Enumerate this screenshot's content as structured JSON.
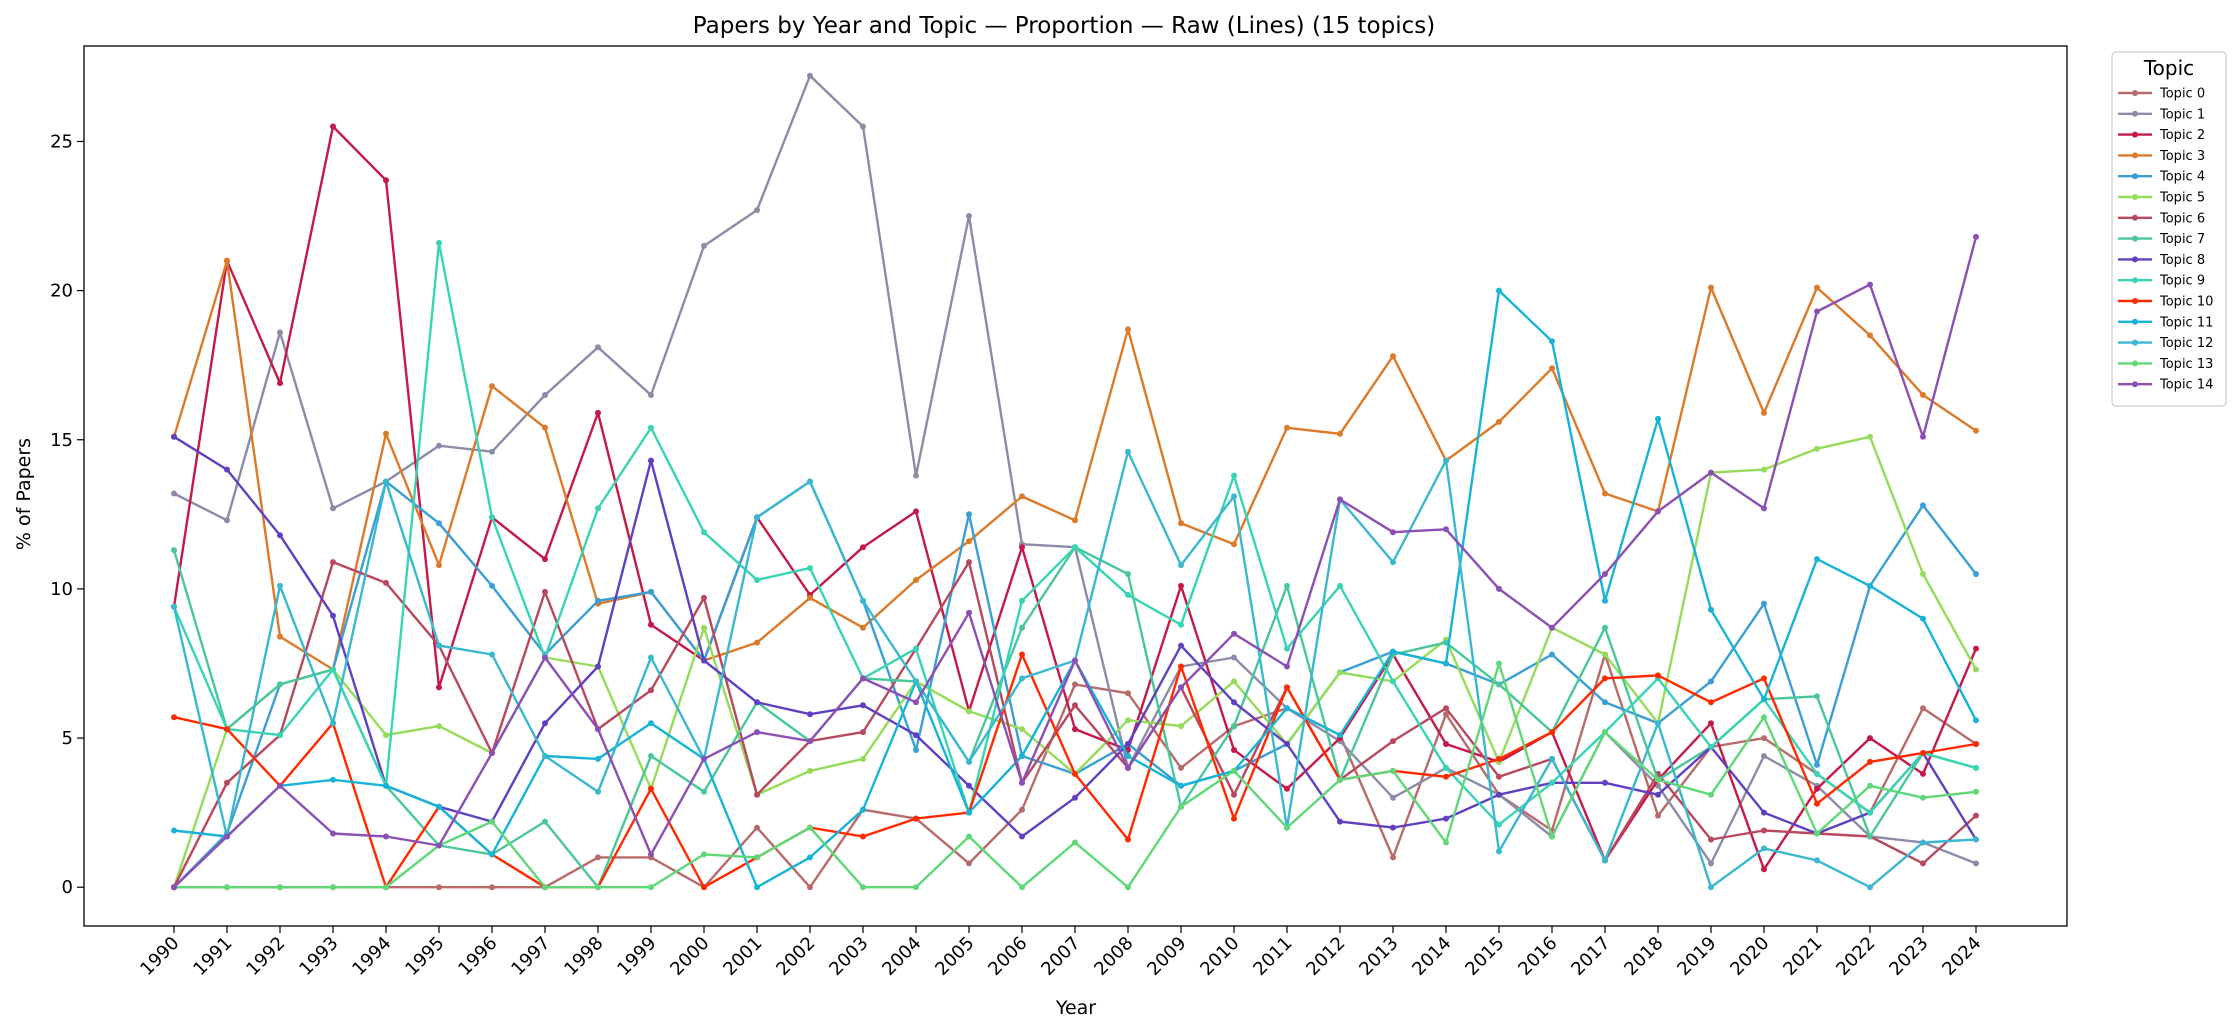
{
  "chart_data": {
    "type": "line",
    "title": "Papers by Year and Topic — Proportion — Raw (Lines) (15 topics)",
    "xlabel": "Year",
    "ylabel": "% of Papers",
    "ylim": [
      -1.3,
      28.2
    ],
    "yticks": [
      0,
      5,
      10,
      15,
      20,
      25
    ],
    "grid": false,
    "legend_title": "Topic",
    "legend_position": "outside-top-right",
    "x": [
      "1990",
      "1991",
      "1992",
      "1993",
      "1994",
      "1995",
      "1996",
      "1997",
      "1998",
      "1999",
      "2000",
      "2001",
      "2002",
      "2003",
      "2004",
      "2005",
      "2006",
      "2007",
      "2008",
      "2009",
      "2010",
      "2011",
      "2012",
      "2013",
      "2014",
      "2015",
      "2016",
      "2017",
      "2018",
      "2019",
      "2020",
      "2021",
      "2022",
      "2023",
      "2024"
    ],
    "series": [
      {
        "name": "Topic 0",
        "color": "#b86b6b",
        "values": [
          0,
          0,
          0,
          0,
          0,
          0,
          0,
          0,
          1.0,
          1.0,
          0,
          2.0,
          0,
          2.6,
          2.3,
          0.8,
          2.6,
          6.8,
          6.5,
          4.0,
          5.4,
          6.0,
          5.1,
          1.0,
          5.8,
          3.1,
          1.9,
          7.8,
          2.4,
          4.7,
          5.0,
          3.8,
          2.5,
          6.0,
          4.8
        ]
      },
      {
        "name": "Topic 1",
        "color": "#8c8ca8",
        "values": [
          13.2,
          12.3,
          18.6,
          12.7,
          13.6,
          14.8,
          14.6,
          16.5,
          18.1,
          16.5,
          21.5,
          22.7,
          27.2,
          25.5,
          13.8,
          22.5,
          11.5,
          11.4,
          4.0,
          7.4,
          7.7,
          6.0,
          4.9,
          3.0,
          4.0,
          3.1,
          1.7,
          5.2,
          3.4,
          0.8,
          4.4,
          3.4,
          1.7,
          1.5,
          0.8
        ]
      },
      {
        "name": "Topic 2",
        "color": "#c41a4a",
        "values": [
          9.4,
          21.0,
          16.9,
          25.5,
          23.7,
          6.7,
          12.4,
          11.0,
          15.9,
          8.8,
          7.6,
          12.4,
          9.8,
          11.4,
          12.6,
          5.9,
          11.4,
          5.3,
          4.6,
          10.1,
          4.6,
          3.3,
          5.0,
          7.8,
          4.8,
          4.2,
          5.2,
          0.9,
          3.6,
          5.5,
          0.6,
          3.3,
          5.0,
          3.8,
          8.0
        ]
      },
      {
        "name": "Topic 3",
        "color": "#dc7a2a",
        "values": [
          15.1,
          21.0,
          8.4,
          7.3,
          15.2,
          10.8,
          16.8,
          15.4,
          9.5,
          9.9,
          7.6,
          8.2,
          9.7,
          8.7,
          10.3,
          11.6,
          13.1,
          12.3,
          18.7,
          12.2,
          11.5,
          15.4,
          15.2,
          17.8,
          14.3,
          15.6,
          17.4,
          13.2,
          12.6,
          20.1,
          15.9,
          20.1,
          18.5,
          16.5,
          15.3
        ]
      },
      {
        "name": "Topic 4",
        "color": "#3a9fd4",
        "values": [
          0,
          1.8,
          6.8,
          7.3,
          13.6,
          12.2,
          10.1,
          7.8,
          9.6,
          9.9,
          7.6,
          12.4,
          13.6,
          9.6,
          4.6,
          12.5,
          4.4,
          3.8,
          4.8,
          3.4,
          3.9,
          4.8,
          7.2,
          7.9,
          7.5,
          6.8,
          7.8,
          6.2,
          5.5,
          6.9,
          9.5,
          4.1,
          10.1,
          12.8,
          10.5
        ]
      },
      {
        "name": "Topic 5",
        "color": "#96dc5a",
        "values": [
          0,
          5.3,
          6.8,
          7.3,
          5.1,
          5.4,
          4.5,
          7.7,
          7.4,
          3.3,
          8.7,
          3.1,
          3.9,
          4.3,
          6.9,
          5.9,
          5.3,
          3.8,
          5.6,
          5.4,
          6.9,
          4.8,
          7.2,
          6.9,
          8.3,
          4.2,
          8.7,
          7.8,
          5.5,
          13.9,
          14.0,
          14.7,
          15.1,
          10.5,
          7.3
        ]
      },
      {
        "name": "Topic 6",
        "color": "#b8485e",
        "values": [
          0,
          3.5,
          5.1,
          10.9,
          10.2,
          8.1,
          4.5,
          9.9,
          5.3,
          6.6,
          9.7,
          3.1,
          4.9,
          5.2,
          8.0,
          10.9,
          3.5,
          6.1,
          4.0,
          6.7,
          3.1,
          6.7,
          3.6,
          4.9,
          6.0,
          3.7,
          4.3,
          0.9,
          3.8,
          1.6,
          1.9,
          1.8,
          1.7,
          0.8,
          2.4
        ]
      },
      {
        "name": "Topic 7",
        "color": "#4ac79a",
        "values": [
          11.3,
          5.3,
          6.8,
          7.3,
          3.4,
          1.4,
          1.1,
          2.2,
          0,
          4.4,
          3.2,
          6.2,
          4.9,
          7.0,
          6.9,
          4.2,
          8.7,
          11.4,
          10.5,
          2.7,
          5.4,
          10.1,
          3.6,
          7.8,
          8.2,
          6.8,
          5.2,
          8.7,
          3.6,
          4.7,
          6.3,
          6.4,
          1.7,
          4.5,
          4.0
        ]
      },
      {
        "name": "Topic 8",
        "color": "#6040c0",
        "values": [
          15.1,
          14.0,
          11.8,
          9.1,
          3.4,
          2.7,
          2.2,
          5.5,
          7.4,
          14.3,
          7.6,
          6.2,
          5.8,
          6.1,
          5.1,
          3.4,
          1.7,
          3.0,
          4.8,
          8.1,
          6.2,
          4.8,
          2.2,
          2.0,
          2.3,
          3.1,
          3.5,
          3.5,
          3.1,
          4.7,
          2.5,
          1.8,
          2.5,
          4.5,
          1.6
        ]
      },
      {
        "name": "Topic 9",
        "color": "#38d4b4",
        "values": [
          9.4,
          5.3,
          5.1,
          7.3,
          3.4,
          21.6,
          12.4,
          7.7,
          12.7,
          15.4,
          11.9,
          10.3,
          10.7,
          7.0,
          8.0,
          2.5,
          9.6,
          11.4,
          9.8,
          8.8,
          13.8,
          8.0,
          10.1,
          6.9,
          4.0,
          2.1,
          3.5,
          5.2,
          7.0,
          4.7,
          6.3,
          3.8,
          2.5,
          4.5,
          4.0
        ]
      },
      {
        "name": "Topic 10",
        "color": "#ff2a00",
        "values": [
          5.7,
          5.3,
          3.4,
          5.5,
          0,
          2.7,
          1.1,
          0,
          0,
          3.3,
          0,
          1.0,
          2.0,
          1.7,
          2.3,
          2.5,
          7.8,
          3.8,
          1.6,
          7.4,
          2.3,
          6.7,
          3.6,
          3.9,
          3.7,
          4.3,
          5.2,
          7.0,
          7.1,
          6.2,
          7.0,
          2.8,
          4.2,
          4.5,
          4.8
        ]
      },
      {
        "name": "Topic 11",
        "color": "#18b4d8",
        "values": [
          1.9,
          1.7,
          3.4,
          3.6,
          3.4,
          2.7,
          1.1,
          4.4,
          4.3,
          5.5,
          4.3,
          0,
          1.0,
          2.6,
          6.9,
          2.5,
          4.4,
          7.6,
          4.4,
          3.4,
          3.9,
          6.0,
          5.1,
          7.9,
          7.5,
          20.0,
          18.3,
          9.6,
          15.7,
          9.3,
          6.3,
          11.0,
          10.1,
          9.0,
          5.6
        ]
      },
      {
        "name": "Topic 12",
        "color": "#3ab8d0",
        "values": [
          9.4,
          1.7,
          10.1,
          5.5,
          13.6,
          8.1,
          7.8,
          4.4,
          3.2,
          7.7,
          4.3,
          12.4,
          13.6,
          9.6,
          6.9,
          4.2,
          7.0,
          7.6,
          14.6,
          10.8,
          13.1,
          2.0,
          13.0,
          10.9,
          14.3,
          1.2,
          4.3,
          0.9,
          5.5,
          0,
          1.3,
          0.9,
          0,
          1.5,
          1.6
        ]
      },
      {
        "name": "Topic 13",
        "color": "#60d878",
        "values": [
          0,
          0,
          0,
          0,
          0,
          1.4,
          2.2,
          0,
          0,
          0,
          1.1,
          1.0,
          2.0,
          0,
          0,
          1.7,
          0,
          1.5,
          0,
          2.7,
          3.9,
          2.0,
          3.6,
          3.9,
          1.5,
          7.5,
          1.7,
          5.2,
          3.6,
          3.1,
          5.7,
          1.8,
          3.4,
          3.0,
          3.2
        ]
      },
      {
        "name": "Topic 14",
        "color": "#8c50b4",
        "values": [
          0,
          1.7,
          3.4,
          1.8,
          1.7,
          1.4,
          4.5,
          7.7,
          5.3,
          1.1,
          4.3,
          5.2,
          4.9,
          7.0,
          6.2,
          9.2,
          3.5,
          7.6,
          4.0,
          6.7,
          8.5,
          7.4,
          13.0,
          11.9,
          12.0,
          10.0,
          8.7,
          10.5,
          12.6,
          13.9,
          12.7,
          19.3,
          20.2,
          15.1,
          21.8
        ]
      }
    ]
  }
}
